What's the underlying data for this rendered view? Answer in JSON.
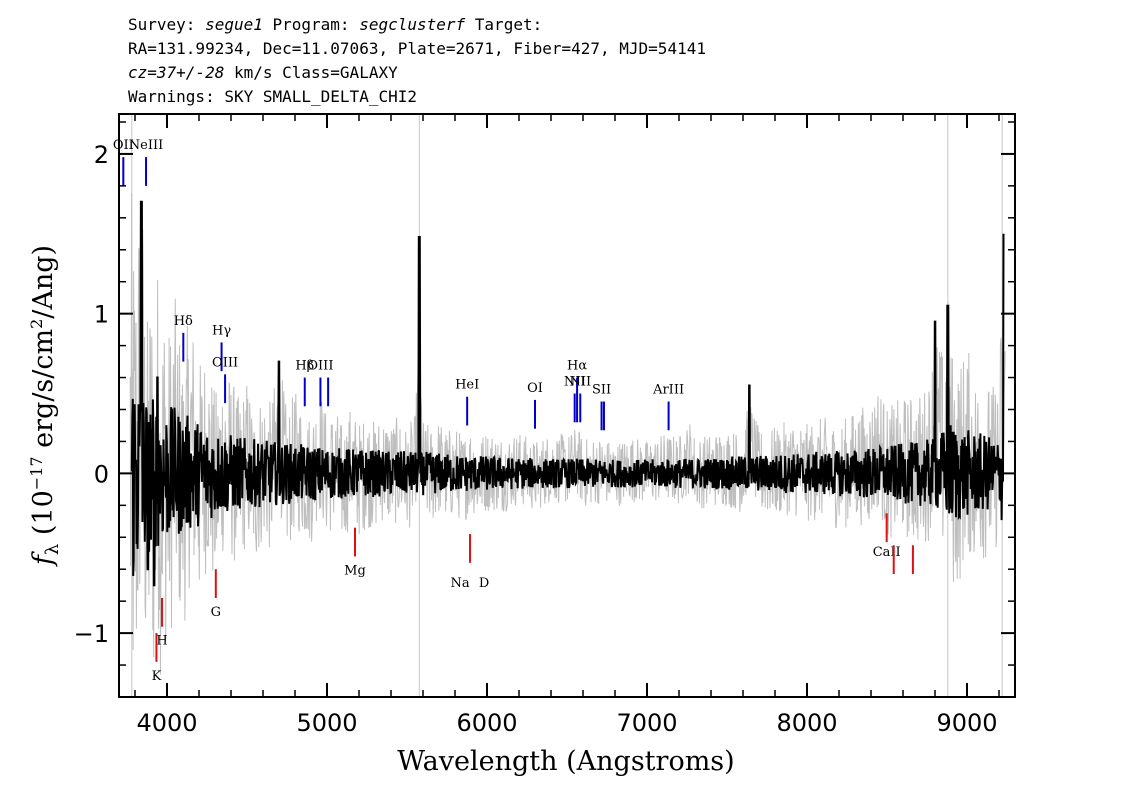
{
  "header": {
    "line1": {
      "survey_label": "Survey: ",
      "survey": "segue1",
      "program_label": " Program: ",
      "program": "segclusterf",
      "target_label": " Target:"
    },
    "line2": "RA=131.99234, Dec=11.07063, Plate=2671, Fiber=427, MJD=54141",
    "line3": {
      "cz": "cz=37+/-28",
      "rest": " km/s Class=GALAXY"
    },
    "line4": "Warnings: SKY SMALL_DELTA_CHI2"
  },
  "chart_data": {
    "type": "line",
    "title": "",
    "xlabel": "Wavelength (Angstroms)",
    "ylabel": "f_λ (10^-17 erg/s/cm^2/Ang)",
    "xlim": [
      3700,
      9300
    ],
    "ylim": [
      -1.4,
      2.25
    ],
    "x_ticks": [
      4000,
      5000,
      6000,
      7000,
      8000,
      9000
    ],
    "y_ticks": [
      -1,
      0,
      1,
      2
    ],
    "x_tick_labels": [
      "4000",
      "5000",
      "6000",
      "7000",
      "8000",
      "9000"
    ],
    "y_tick_labels": [
      "−1",
      "0",
      "1",
      "2"
    ],
    "vertical_grid_lines": [
      3780,
      5577,
      8880,
      9220
    ],
    "grid": false,
    "series": [
      {
        "role": "error",
        "color": "#bebebe",
        "x": [
          3800,
          3850,
          3900,
          4000,
          4100,
          4200,
          4300,
          4400,
          4500,
          4600,
          4700,
          4800,
          5000,
          5200,
          5400,
          5600,
          5800,
          6000,
          6200,
          6400,
          6600,
          6800,
          7000,
          7200,
          7400,
          7600,
          7800,
          8000,
          8200,
          8400,
          8600,
          8800,
          8900,
          9000,
          9100,
          9200,
          9250
        ],
        "values": [
          1.3,
          1.0,
          0.9,
          0.8,
          0.7,
          0.6,
          0.5,
          0.45,
          0.4,
          0.38,
          0.36,
          0.34,
          0.3,
          0.28,
          0.26,
          0.25,
          0.22,
          0.2,
          0.18,
          0.17,
          0.17,
          0.16,
          0.16,
          0.17,
          0.18,
          0.2,
          0.22,
          0.24,
          0.26,
          0.3,
          0.34,
          0.4,
          0.6,
          0.5,
          0.45,
          0.4,
          0.9
        ]
      },
      {
        "role": "flux",
        "color": "#000000",
        "x": [
          3780,
          3800,
          3820,
          3840,
          3860,
          3880,
          3900,
          3920,
          3940,
          3960,
          3980,
          4000,
          4050,
          4100,
          4150,
          4200,
          4250,
          4300,
          4350,
          4400,
          4450,
          4500,
          4550,
          4600,
          4650,
          4700,
          4750,
          4800,
          4850,
          4900,
          4950,
          5000,
          5050,
          5100,
          5150,
          5200,
          5250,
          5300,
          5350,
          5400,
          5450,
          5500,
          5550,
          5577,
          5600,
          5650,
          5700,
          5750,
          5800,
          5850,
          5900,
          5950,
          6000,
          6100,
          6200,
          6300,
          6400,
          6500,
          6563,
          6600,
          6700,
          6800,
          6900,
          7000,
          7100,
          7200,
          7280,
          7300,
          7400,
          7500,
          7600,
          7640,
          7700,
          7800,
          7900,
          8000,
          8100,
          8200,
          8300,
          8400,
          8450,
          8500,
          8600,
          8700,
          8760,
          8800,
          8850,
          8880,
          8900,
          8950,
          9000,
          9050,
          9100,
          9150,
          9200,
          9230
        ],
        "values": [
          0.2,
          -0.3,
          0.5,
          1.7,
          0.1,
          -0.6,
          0.4,
          -0.7,
          0.6,
          -0.5,
          0.3,
          -0.4,
          0.35,
          -0.3,
          0.5,
          -0.2,
          0.3,
          -0.35,
          0.25,
          0.1,
          -0.2,
          0.2,
          -0.25,
          0.15,
          -0.1,
          0.7,
          -0.15,
          0.2,
          0.05,
          -0.1,
          0.4,
          -0.05,
          0.1,
          -0.2,
          0.15,
          -0.1,
          0.05,
          -0.05,
          0.1,
          0.0,
          0.05,
          -0.1,
          0.1,
          1.48,
          0.05,
          -0.05,
          0.1,
          -0.05,
          0.05,
          -0.1,
          0.08,
          -0.08,
          0.05,
          0.0,
          0.08,
          -0.05,
          0.1,
          0.05,
          0.2,
          0.0,
          0.05,
          -0.02,
          0.08,
          0.0,
          0.1,
          0.05,
          0.3,
          0.0,
          0.05,
          0.1,
          0.0,
          0.55,
          0.0,
          0.02,
          0.1,
          0.0,
          0.08,
          -0.05,
          0.1,
          0.15,
          0.45,
          0.0,
          0.1,
          0.05,
          0.2,
          0.95,
          0.3,
          1.05,
          0.1,
          0.0,
          0.4,
          0.05,
          0.1,
          0.0,
          0.2,
          1.5
        ]
      }
    ],
    "emission_lines": [
      {
        "label": "OII",
        "x": 3727,
        "y_top": 1.98,
        "y_bottom": 1.8
      },
      {
        "label": "NeIII",
        "x": 3869,
        "y_top": 1.98,
        "y_bottom": 1.8
      },
      {
        "label": "Hδ",
        "x": 4102,
        "y_top": 0.88,
        "y_bottom": 0.7
      },
      {
        "label": "Hγ",
        "x": 4341,
        "y_top": 0.82,
        "y_bottom": 0.64
      },
      {
        "label": "OIII",
        "x": 4363,
        "y_top": 0.62,
        "y_bottom": 0.44
      },
      {
        "label": "Hβ",
        "x": 4861,
        "y_top": 0.6,
        "y_bottom": 0.42
      },
      {
        "label": "OIII",
        "x": 4959,
        "y_top": 0.6,
        "y_bottom": 0.42
      },
      {
        "label": "",
        "x": 5007,
        "y_top": 0.6,
        "y_bottom": 0.42
      },
      {
        "label": "HeI",
        "x": 5876,
        "y_top": 0.48,
        "y_bottom": 0.3
      },
      {
        "label": "OI",
        "x": 6300,
        "y_top": 0.46,
        "y_bottom": 0.28
      },
      {
        "label": "NII",
        "x": 6548,
        "y_top": 0.5,
        "y_bottom": 0.32
      },
      {
        "label": "Hα",
        "x": 6563,
        "y_top": 0.6,
        "y_bottom": 0.32
      },
      {
        "label": "NII",
        "x": 6583,
        "y_top": 0.5,
        "y_bottom": 0.32
      },
      {
        "label": "SII",
        "x": 6716,
        "y_top": 0.45,
        "y_bottom": 0.27
      },
      {
        "label": "",
        "x": 6731,
        "y_top": 0.45,
        "y_bottom": 0.27
      },
      {
        "label": "ArIII",
        "x": 7135,
        "y_top": 0.45,
        "y_bottom": 0.27
      }
    ],
    "absorption_lines": [
      {
        "label": "K",
        "x": 3934,
        "y_top": -1.0,
        "y_bottom": -1.18
      },
      {
        "label": "H",
        "x": 3969,
        "y_top": -0.78,
        "y_bottom": -0.96
      },
      {
        "label": "G",
        "x": 4305,
        "y_top": -0.6,
        "y_bottom": -0.78
      },
      {
        "label": "Mg",
        "x": 5175,
        "y_top": -0.34,
        "y_bottom": -0.52
      },
      {
        "label": "Na",
        "x": 5894,
        "y_top": -0.38,
        "y_bottom": -0.56
      },
      {
        "label": "D",
        "x": 5894,
        "y_top": null,
        "y_bottom": null
      },
      {
        "label": "CaII",
        "x": 8498,
        "y_top": -0.25,
        "y_bottom": -0.43
      },
      {
        "label": "",
        "x": 8542,
        "y_top": -0.45,
        "y_bottom": -0.63
      },
      {
        "label": "",
        "x": 8662,
        "y_top": -0.45,
        "y_bottom": -0.63
      }
    ],
    "colors": {
      "error": "#bebebe",
      "flux": "#000000",
      "emission": "#0000cc",
      "absorption": "#dd1111",
      "frame": "#000000"
    }
  }
}
